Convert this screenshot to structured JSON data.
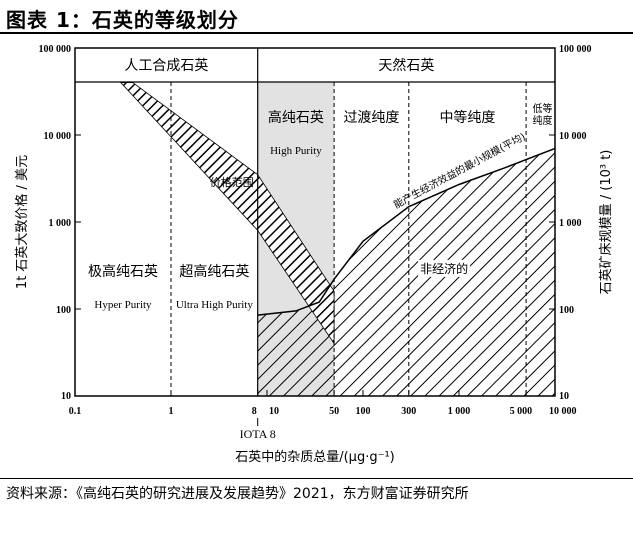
{
  "figure_title": "图表 1：石英的等级划分",
  "source_note": "资料来源：《高纯石英的研究进展及发展趋势》2021，东方财富证券研究所",
  "chart_data": {
    "type": "area",
    "x_scale": "log",
    "y_scale": "log",
    "xlim": [
      0.1,
      10000
    ],
    "ylim": [
      10,
      100000
    ],
    "x_ticks": [
      {
        "v": 0.1,
        "label": "0.1"
      },
      {
        "v": 1,
        "label": "1"
      },
      {
        "v": 8,
        "label": "8"
      },
      {
        "v": 10,
        "label": "10"
      },
      {
        "v": 50,
        "label": "50"
      },
      {
        "v": 100,
        "label": "100"
      },
      {
        "v": 300,
        "label": "300"
      },
      {
        "v": 1000,
        "label": "1 000"
      },
      {
        "v": 5000,
        "label": "5 000"
      },
      {
        "v": 10000,
        "label": "10 000"
      }
    ],
    "y_ticks": [
      {
        "v": 10,
        "label": "10"
      },
      {
        "v": 100,
        "label": "100"
      },
      {
        "v": 1000,
        "label": "1 000"
      },
      {
        "v": 10000,
        "label": "10 000"
      },
      {
        "v": 100000,
        "label": "100 000"
      }
    ],
    "xlabel": "石英中的杂质总量/(μg·g⁻¹)",
    "ylabel_left": "1t 石英大致价格 / 美元",
    "ylabel_right": "石英矿床规模量 / (10³ t)",
    "iota_marker": {
      "x": 8,
      "label": "IOTA 8"
    },
    "price_band": {
      "label": "价格范围",
      "upper": [
        [
          0.4,
          40000
        ],
        [
          8,
          3500
        ],
        [
          50,
          160
        ]
      ],
      "lower": [
        [
          0.3,
          40000
        ],
        [
          8,
          800
        ],
        [
          50,
          40
        ]
      ]
    },
    "min_scale_curve": {
      "label": "能产生经济效益的最小规模(平均)",
      "points": [
        [
          8,
          85
        ],
        [
          20,
          95
        ],
        [
          35,
          120
        ],
        [
          50,
          220
        ],
        [
          100,
          600
        ],
        [
          300,
          1500
        ],
        [
          1000,
          2700
        ],
        [
          3000,
          4200
        ],
        [
          10000,
          7000
        ]
      ]
    },
    "uneconomic_label": "非经济的",
    "top_groups": [
      {
        "label": "人工合成石英",
        "from": 0.1,
        "to": 8
      },
      {
        "label": "天然石英",
        "from": 8,
        "to": 10000
      }
    ],
    "zones": [
      {
        "zh": "极高纯石英",
        "en": "Hyper Purity",
        "from": 0.1,
        "to": 1
      },
      {
        "zh": "超高纯石英",
        "en": "Ultra High Purity",
        "from": 1,
        "to": 8
      },
      {
        "zh": "高纯石英",
        "en": "High Purity",
        "from": 8,
        "to": 50
      },
      {
        "zh": "过渡纯度",
        "en": "",
        "from": 50,
        "to": 300
      },
      {
        "zh": "中等纯度",
        "en": "",
        "from": 300,
        "to": 5000
      },
      {
        "zh": "低等纯度",
        "en": "",
        "from": 5000,
        "to": 10000
      }
    ],
    "colors": {
      "high_purity_fill": "#e2e2e2",
      "ink": "#000000",
      "background": "#ffffff"
    }
  }
}
